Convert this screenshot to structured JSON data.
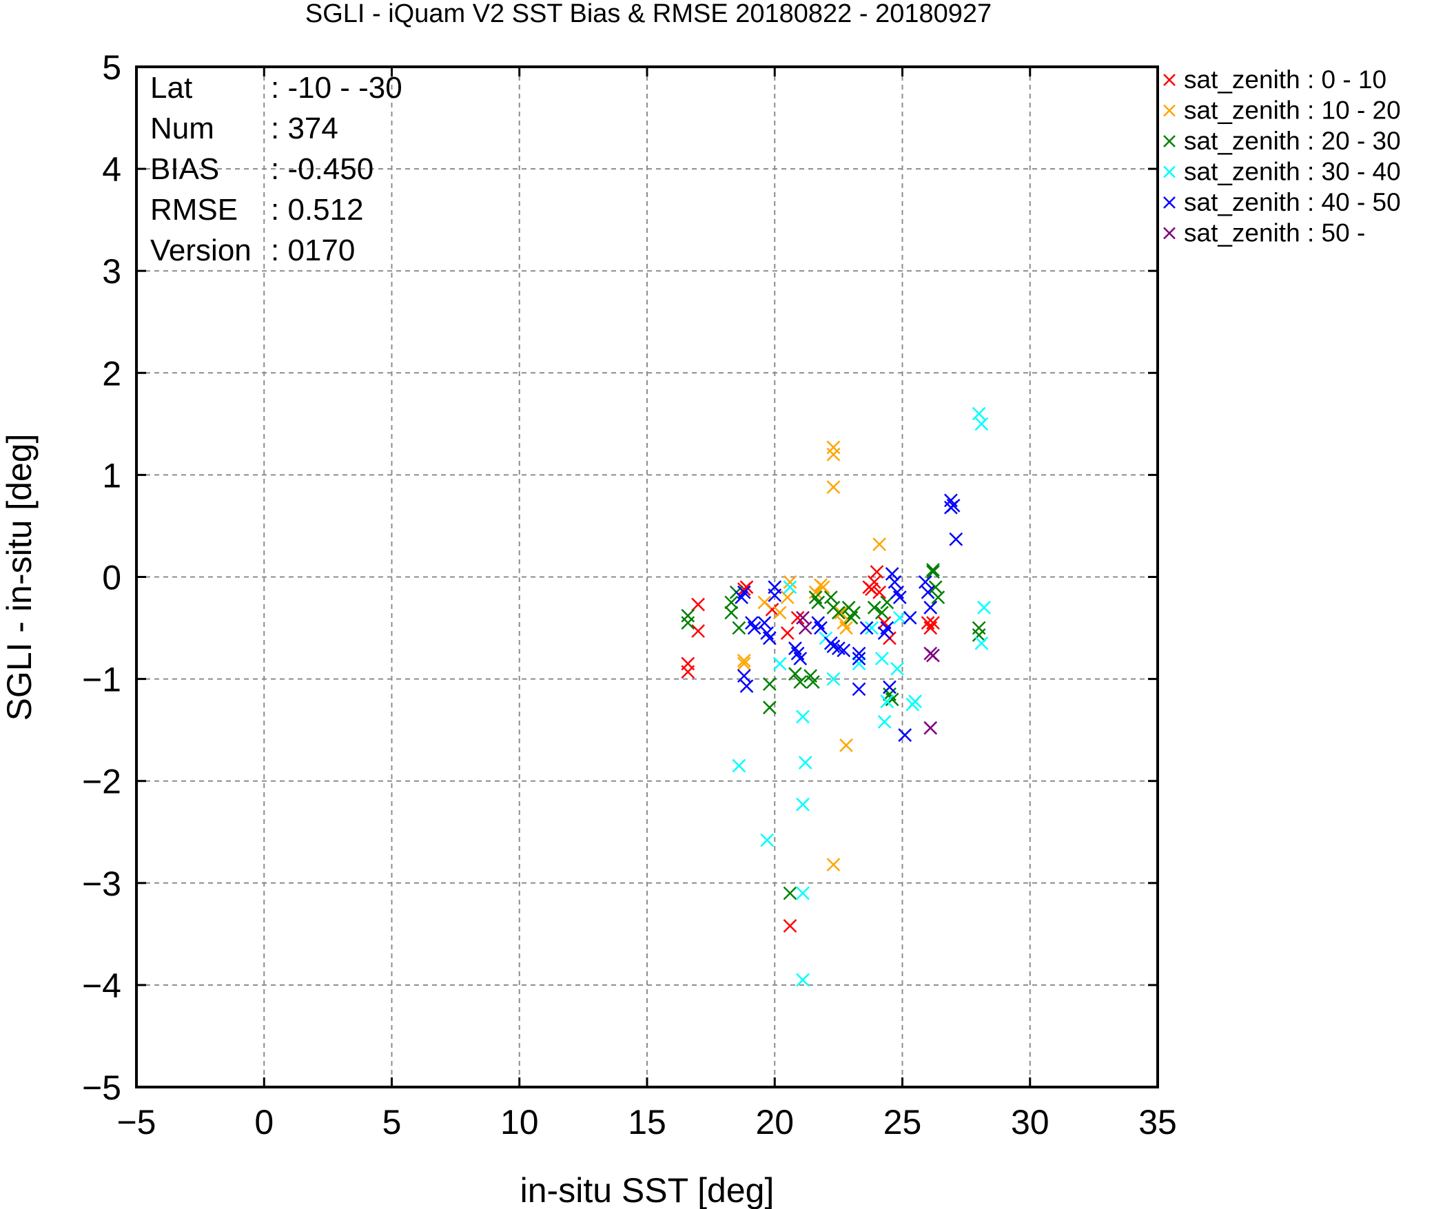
{
  "chart_data": {
    "type": "scatter",
    "title": "SGLI - iQuam V2 SST Bias & RMSE 20180822 - 20180927",
    "xlabel": "in-situ SST [deg]",
    "ylabel": "SGLI - in-situ [deg]",
    "xlim": [
      -5,
      35
    ],
    "ylim": [
      -5,
      5
    ],
    "xticks": [
      -5,
      0,
      5,
      10,
      15,
      20,
      25,
      30,
      35
    ],
    "xtick_labels": [
      "-5",
      "0",
      "5",
      "10",
      "15",
      "20",
      "25",
      "30",
      "35"
    ],
    "yticks": [
      -5,
      -4,
      -3,
      -2,
      -1,
      0,
      1,
      2,
      3,
      4,
      5
    ],
    "ytick_labels": [
      "-5",
      "-4",
      "-3",
      "-2",
      "-1",
      "0",
      "1",
      "2",
      "3",
      "4",
      "5"
    ],
    "grid": true,
    "legend_position": "outside top-right",
    "marker": "x",
    "stats": [
      {
        "label": "Lat",
        "value": ": -10 - -30"
      },
      {
        "label": "Num",
        "value": ": 374"
      },
      {
        "label": "BIAS",
        "value": ": -0.450"
      },
      {
        "label": "RMSE",
        "value": ": 0.512"
      },
      {
        "label": "Version",
        "value": ": 0170"
      }
    ],
    "series": [
      {
        "name": "sat_zenith :  0 - 10",
        "color": "#ff0000",
        "points": [
          [
            16.6,
            -0.85
          ],
          [
            16.6,
            -0.93
          ],
          [
            17.0,
            -0.27
          ],
          [
            17.0,
            -0.53
          ],
          [
            18.8,
            -0.12
          ],
          [
            18.9,
            -0.1
          ],
          [
            20.5,
            -0.55
          ],
          [
            20.6,
            -3.42
          ],
          [
            23.7,
            -0.1
          ],
          [
            23.8,
            -0.12
          ],
          [
            23.9,
            -0.05
          ],
          [
            24.0,
            0.05
          ],
          [
            24.1,
            -0.15
          ],
          [
            24.3,
            -0.45
          ],
          [
            24.5,
            -0.6
          ],
          [
            26.0,
            -0.45
          ],
          [
            26.1,
            -0.5
          ],
          [
            26.2,
            -0.45
          ],
          [
            20.9,
            -0.4
          ],
          [
            19.9,
            -0.32
          ]
        ]
      },
      {
        "name": "sat_zenith : 10 - 20",
        "color": "#ffa500",
        "points": [
          [
            18.8,
            -0.82
          ],
          [
            18.8,
            -0.85
          ],
          [
            19.6,
            -0.25
          ],
          [
            20.2,
            -0.35
          ],
          [
            20.5,
            -0.2
          ],
          [
            21.6,
            -0.15
          ],
          [
            21.8,
            -0.08
          ],
          [
            21.9,
            -0.1
          ],
          [
            22.3,
            1.27
          ],
          [
            22.3,
            1.2
          ],
          [
            22.3,
            0.88
          ],
          [
            22.3,
            -2.82
          ],
          [
            22.6,
            -0.35
          ],
          [
            22.7,
            -0.45
          ],
          [
            22.8,
            -0.5
          ],
          [
            22.8,
            -1.65
          ],
          [
            23.0,
            -0.4
          ],
          [
            24.1,
            0.32
          ],
          [
            20.6,
            -0.05
          ],
          [
            20.8,
            -0.7
          ]
        ]
      },
      {
        "name": "sat_zenith : 20 - 30",
        "color": "#008000",
        "points": [
          [
            16.6,
            -0.38
          ],
          [
            16.6,
            -0.45
          ],
          [
            18.3,
            -0.25
          ],
          [
            18.3,
            -0.35
          ],
          [
            18.5,
            -0.15
          ],
          [
            18.6,
            -0.5
          ],
          [
            19.8,
            -1.05
          ],
          [
            19.8,
            -1.28
          ],
          [
            20.6,
            -3.1
          ],
          [
            20.8,
            -0.95
          ],
          [
            21.0,
            -1.03
          ],
          [
            21.4,
            -0.97
          ],
          [
            21.5,
            -1.03
          ],
          [
            21.6,
            -0.2
          ],
          [
            21.7,
            -0.25
          ],
          [
            22.2,
            -0.2
          ],
          [
            22.3,
            -0.3
          ],
          [
            22.5,
            -0.35
          ],
          [
            22.9,
            -0.3
          ],
          [
            23.0,
            -0.4
          ],
          [
            23.1,
            -0.35
          ],
          [
            23.9,
            -0.3
          ],
          [
            24.2,
            -0.35
          ],
          [
            24.4,
            -0.25
          ],
          [
            24.5,
            -1.15
          ],
          [
            24.6,
            -1.2
          ],
          [
            26.2,
            0.07
          ],
          [
            26.2,
            0.05
          ],
          [
            26.3,
            -0.1
          ],
          [
            26.4,
            -0.2
          ],
          [
            28.0,
            -0.5
          ],
          [
            28.0,
            -0.57
          ]
        ]
      },
      {
        "name": "sat_zenith : 30 - 40",
        "color": "#00ffff",
        "points": [
          [
            18.6,
            -1.85
          ],
          [
            19.7,
            -2.58
          ],
          [
            20.2,
            -0.85
          ],
          [
            20.6,
            -0.1
          ],
          [
            21.1,
            -1.37
          ],
          [
            21.1,
            -2.23
          ],
          [
            21.1,
            -3.1
          ],
          [
            21.1,
            -3.95
          ],
          [
            21.2,
            -1.82
          ],
          [
            22.3,
            -1.0
          ],
          [
            23.3,
            -0.85
          ],
          [
            23.8,
            -0.5
          ],
          [
            24.2,
            -0.8
          ],
          [
            24.3,
            -1.42
          ],
          [
            24.4,
            -1.22
          ],
          [
            24.8,
            -0.9
          ],
          [
            24.9,
            -0.4
          ],
          [
            25.4,
            -1.25
          ],
          [
            25.5,
            -1.22
          ],
          [
            28.0,
            1.6
          ],
          [
            28.1,
            1.5
          ],
          [
            28.1,
            -0.65
          ],
          [
            28.2,
            -0.3
          ],
          [
            22.0,
            -0.6
          ]
        ]
      },
      {
        "name": "sat_zenith : 40 - 50",
        "color": "#0000ff",
        "points": [
          [
            18.8,
            -0.97
          ],
          [
            18.9,
            -1.07
          ],
          [
            18.7,
            -0.2
          ],
          [
            18.8,
            -0.15
          ],
          [
            19.1,
            -0.45
          ],
          [
            19.2,
            -0.5
          ],
          [
            19.6,
            -0.45
          ],
          [
            19.7,
            -0.55
          ],
          [
            19.8,
            -0.6
          ],
          [
            20.0,
            -0.1
          ],
          [
            20.0,
            -0.18
          ],
          [
            20.8,
            -0.7
          ],
          [
            20.9,
            -0.75
          ],
          [
            21.0,
            -0.8
          ],
          [
            21.7,
            -0.45
          ],
          [
            21.8,
            -0.5
          ],
          [
            22.2,
            -0.65
          ],
          [
            22.3,
            -0.68
          ],
          [
            22.5,
            -0.7
          ],
          [
            22.7,
            -0.72
          ],
          [
            23.3,
            -0.75
          ],
          [
            23.3,
            -0.8
          ],
          [
            23.3,
            -1.1
          ],
          [
            23.6,
            -0.5
          ],
          [
            24.3,
            -0.55
          ],
          [
            24.4,
            -0.5
          ],
          [
            24.5,
            -1.08
          ],
          [
            24.6,
            0.03
          ],
          [
            24.7,
            -0.05
          ],
          [
            24.8,
            -0.15
          ],
          [
            24.9,
            -0.2
          ],
          [
            25.1,
            -1.55
          ],
          [
            25.3,
            -0.4
          ],
          [
            25.9,
            -0.05
          ],
          [
            26.0,
            -0.15
          ],
          [
            26.1,
            -0.3
          ],
          [
            26.9,
            0.75
          ],
          [
            26.9,
            0.68
          ],
          [
            27.0,
            0.7
          ],
          [
            27.1,
            0.37
          ]
        ]
      },
      {
        "name": "sat_zenith : 50 -",
        "color": "#800080",
        "points": [
          [
            21.1,
            -0.4
          ],
          [
            21.2,
            -0.5
          ],
          [
            26.1,
            -0.75
          ],
          [
            26.2,
            -0.77
          ],
          [
            26.1,
            -1.48
          ]
        ]
      }
    ]
  }
}
